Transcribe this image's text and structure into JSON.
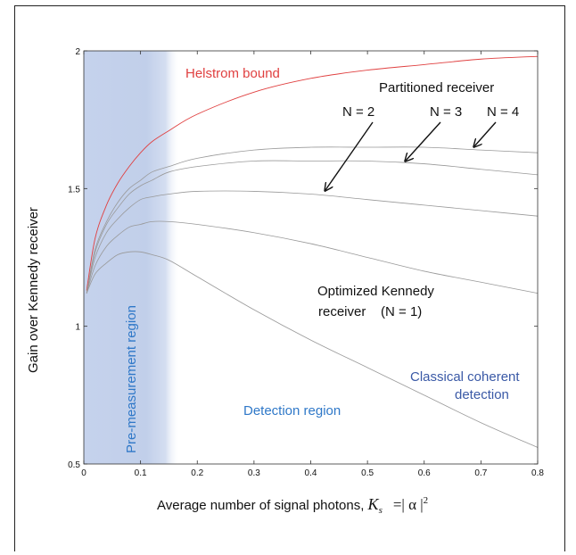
{
  "chart_data": {
    "type": "line",
    "xlabel": "Average number of signal photons, ",
    "xlabel_math": "K",
    "xlabel_sub": "s",
    "xlabel_tail": "=| α |",
    "xlabel_sup": "2",
    "ylabel": "Gain over Kennedy receiver",
    "xlim": [
      0,
      0.8
    ],
    "ylim": [
      0.5,
      2
    ],
    "xticks": [
      0,
      0.1,
      0.2,
      0.3,
      0.4,
      0.5,
      0.6,
      0.7,
      0.8
    ],
    "xtick_labels": [
      "0",
      "0.1",
      "0.2",
      "0.3",
      "0.4",
      "0.5",
      "0.6",
      "0.7",
      "0.8"
    ],
    "yticks": [
      0.5,
      1,
      1.5,
      2
    ],
    "ytick_labels": [
      "0.5",
      "1",
      "1.5",
      "2"
    ],
    "grid": false,
    "shaded_region": {
      "label": "Pre-measurement region",
      "x_start": 0,
      "x_end": 0.16,
      "color": "#b8c8e6"
    },
    "series": [
      {
        "color": "#e04040",
        "x": [
          0.005,
          0.02,
          0.04,
          0.06,
          0.08,
          0.1,
          0.12,
          0.15,
          0.2,
          0.3,
          0.4,
          0.5,
          0.6,
          0.7,
          0.8
        ],
        "y": [
          1.13,
          1.32,
          1.44,
          1.52,
          1.58,
          1.63,
          1.67,
          1.71,
          1.77,
          1.85,
          1.9,
          1.93,
          1.95,
          1.97,
          1.98
        ]
      },
      {
        "color": "#999999",
        "x": [
          0.005,
          0.02,
          0.04,
          0.06,
          0.08,
          0.1,
          0.12,
          0.15,
          0.2,
          0.3,
          0.4,
          0.5,
          0.6,
          0.7,
          0.8
        ],
        "y": [
          1.12,
          1.28,
          1.38,
          1.45,
          1.5,
          1.53,
          1.56,
          1.58,
          1.61,
          1.64,
          1.65,
          1.65,
          1.65,
          1.64,
          1.63
        ]
      },
      {
        "color": "#999999",
        "x": [
          0.005,
          0.02,
          0.04,
          0.06,
          0.08,
          0.1,
          0.12,
          0.15,
          0.2,
          0.3,
          0.4,
          0.5,
          0.6,
          0.7,
          0.8
        ],
        "y": [
          1.12,
          1.27,
          1.37,
          1.43,
          1.48,
          1.51,
          1.53,
          1.56,
          1.58,
          1.6,
          1.6,
          1.6,
          1.59,
          1.57,
          1.55
        ]
      },
      {
        "color": "#999999",
        "x": [
          0.005,
          0.02,
          0.04,
          0.06,
          0.08,
          0.1,
          0.12,
          0.15,
          0.2,
          0.3,
          0.4,
          0.5,
          0.6,
          0.7,
          0.8
        ],
        "y": [
          1.12,
          1.25,
          1.34,
          1.39,
          1.43,
          1.46,
          1.47,
          1.48,
          1.49,
          1.49,
          1.48,
          1.46,
          1.44,
          1.42,
          1.4
        ]
      },
      {
        "color": "#999999",
        "x": [
          0.005,
          0.02,
          0.04,
          0.06,
          0.08,
          0.1,
          0.12,
          0.15,
          0.2,
          0.3,
          0.4,
          0.5,
          0.6,
          0.7,
          0.8
        ],
        "y": [
          1.12,
          1.22,
          1.29,
          1.33,
          1.36,
          1.37,
          1.38,
          1.38,
          1.37,
          1.34,
          1.3,
          1.25,
          1.2,
          1.16,
          1.12
        ]
      },
      {
        "color": "#999999",
        "x": [
          0.005,
          0.02,
          0.04,
          0.06,
          0.08,
          0.1,
          0.12,
          0.15,
          0.2,
          0.3,
          0.4,
          0.5,
          0.6,
          0.7,
          0.8
        ],
        "y": [
          1.12,
          1.19,
          1.23,
          1.26,
          1.27,
          1.27,
          1.26,
          1.24,
          1.18,
          1.06,
          0.95,
          0.85,
          0.75,
          0.65,
          0.56
        ]
      }
    ],
    "annotations": [
      {
        "text": "Helstrom bound",
        "color": "#e04040"
      },
      {
        "text": "Partitioned receiver",
        "color": "#111111"
      },
      {
        "text": "N = 2",
        "color": "#111111"
      },
      {
        "text": "N = 3",
        "color": "#111111"
      },
      {
        "text": "N = 4",
        "color": "#111111"
      },
      {
        "text": "Optimized Kennedy",
        "color": "#111111"
      },
      {
        "text": "receiver    (N = 1)",
        "color": "#111111"
      },
      {
        "text": "Classical coherent",
        "color": "#3a59a6"
      },
      {
        "text": "detection",
        "color": "#3a59a6"
      },
      {
        "text": "Detection region",
        "color": "#2f78c8"
      },
      {
        "text": "Pre-measurement region",
        "color": "#2f78c8"
      }
    ]
  }
}
